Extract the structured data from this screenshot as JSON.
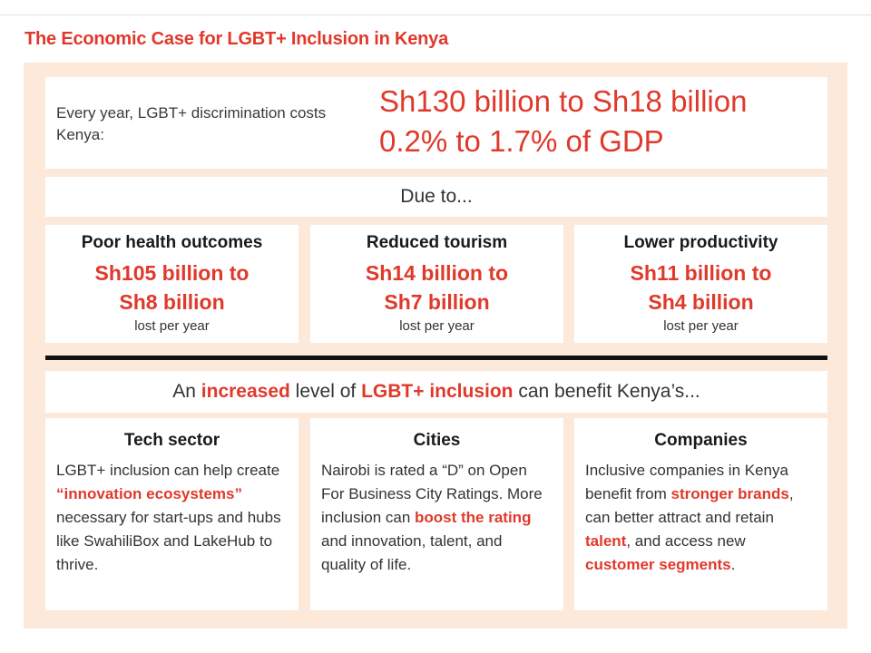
{
  "title": "The Economic Case for LGBT+ Inclusion in Kenya",
  "colors": {
    "accent": "#e0392b",
    "panel": "#fce9d9"
  },
  "headline": {
    "lead": "Every year, LGBT+ discrimination costs Kenya:",
    "range_shillings": "Sh130 billion to Sh18 billion",
    "range_gdp": "0.2% to 1.7% of GDP"
  },
  "due_to": "Due to...",
  "causes": [
    {
      "title": "Poor health outcomes",
      "amount_line1": "Sh105 billion to",
      "amount_line2": "Sh8 billion",
      "note": "lost per year"
    },
    {
      "title": "Reduced tourism",
      "amount_line1": "Sh14 billion to",
      "amount_line2": "Sh7 billion",
      "note": "lost per year"
    },
    {
      "title": "Lower productivity",
      "amount_line1": "Sh11 billion to",
      "amount_line2": "Sh4 billion",
      "note": "lost per year"
    }
  ],
  "benefit": {
    "part1": "An ",
    "hl1": "increased",
    "part2": " level of ",
    "hl2": "LGBT+ inclusion",
    "part3": " can benefit Kenya’s..."
  },
  "areas": [
    {
      "title": "Tech sector",
      "t1": "LGBT+ inclusion can help create ",
      "h1": "“innovation ecosystems”",
      "t2": " necessary for start-ups and hubs like SwahiliBox and LakeHub to thrive."
    },
    {
      "title": "Cities",
      "t1": "Nairobi is rated a “D” on Open For Business City Ratings. More inclusion can ",
      "h1": "boost the rating",
      "t2": " and innovation, talent, and quality of life."
    },
    {
      "title": "Companies",
      "t1": "Inclusive companies in Kenya benefit from ",
      "h1": "stronger brands",
      "t2": ", can better attract and retain ",
      "h2": "talent",
      "t3": ", and access new ",
      "h3": "customer segments",
      "t4": "."
    }
  ]
}
